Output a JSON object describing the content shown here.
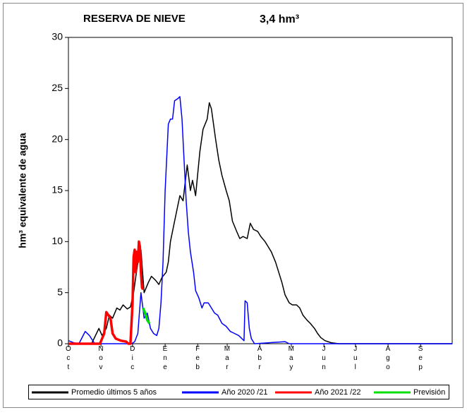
{
  "chart_data": {
    "type": "line",
    "title": "RESERVA DE NIEVE",
    "subtitle": "3,4 hm³",
    "y_label": "hm³ equivalente de agua",
    "xlim": [
      0,
      365
    ],
    "xticks": [
      {
        "value": 0,
        "label": "Oct"
      },
      {
        "value": 31,
        "label": "Nov"
      },
      {
        "value": 61,
        "label": "Dic"
      },
      {
        "value": 92,
        "label": "Ene"
      },
      {
        "value": 123,
        "label": "Feb"
      },
      {
        "value": 151,
        "label": "Mar"
      },
      {
        "value": 182,
        "label": "Abr"
      },
      {
        "value": 212,
        "label": "May"
      },
      {
        "value": 243,
        "label": "Jun"
      },
      {
        "value": 273,
        "label": "Jul"
      },
      {
        "value": 304,
        "label": "Ago"
      },
      {
        "value": 335,
        "label": "Sep"
      }
    ],
    "ylim": [
      0,
      30
    ],
    "yticks": [
      0,
      5,
      10,
      15,
      20,
      25,
      30
    ],
    "legend": "bottom",
    "series": [
      {
        "name": "Promedio últimos 5 años",
        "color": "#000000",
        "x": [
          0,
          22,
          29,
          32,
          36,
          39,
          42,
          46,
          49,
          52,
          56,
          59,
          62,
          66,
          69,
          72,
          76,
          79,
          83,
          86,
          89,
          93,
          95,
          97,
          101,
          106,
          109,
          113,
          116,
          118,
          121,
          125,
          128,
          132,
          134,
          136,
          140,
          143,
          146,
          150,
          153,
          156,
          160,
          163,
          166,
          170,
          173,
          176,
          180,
          183,
          187,
          190,
          193,
          197,
          200,
          203,
          206,
          210,
          213,
          217,
          220,
          223,
          227,
          230,
          234,
          237,
          240,
          244,
          250,
          257,
          365
        ],
        "values": [
          0,
          0,
          1.5,
          0.8,
          1.5,
          2.8,
          2.5,
          3.5,
          3.3,
          3.8,
          3.4,
          3.6,
          5,
          8,
          9.2,
          5,
          6,
          6.6,
          6.2,
          5.8,
          6.5,
          7,
          8,
          10,
          12,
          14.5,
          14,
          17.5,
          15,
          16,
          14.5,
          18.8,
          21,
          22,
          23.6,
          23,
          20,
          18,
          16.5,
          15,
          14,
          12,
          11,
          10.3,
          10.5,
          10.3,
          11.8,
          11.2,
          11,
          10.5,
          10,
          9.5,
          9,
          8,
          7,
          6,
          4.8,
          4,
          3.8,
          3.8,
          3.5,
          2.8,
          2.3,
          2,
          1.5,
          1,
          0.6,
          0.3,
          0.1,
          0,
          0
        ]
      },
      {
        "name": "Año 2020 /21",
        "color": "#0000ff",
        "x": [
          0,
          5,
          10,
          16,
          20,
          25,
          60,
          63,
          66,
          69,
          72,
          75,
          78,
          81,
          84,
          86,
          88,
          90,
          92,
          95,
          97,
          99,
          101,
          104,
          106,
          108,
          110,
          112,
          114,
          116,
          119,
          121,
          124,
          127,
          129,
          133,
          136,
          139,
          142,
          146,
          150,
          154,
          158,
          162,
          164,
          167,
          168,
          170,
          172,
          174,
          177,
          206,
          210,
          365
        ],
        "values": [
          0.3,
          0.1,
          0,
          1.2,
          0.8,
          0,
          0,
          0.2,
          1,
          5,
          2.5,
          3,
          1.5,
          1,
          0.8,
          1.5,
          4,
          8,
          15,
          21.5,
          22,
          22,
          23.8,
          24,
          24.2,
          22,
          18,
          14,
          11,
          9,
          7,
          5.2,
          4.5,
          3.5,
          4,
          4,
          3.5,
          3,
          2.8,
          2,
          1.7,
          1.2,
          1,
          0.8,
          0.6,
          0.3,
          4.2,
          4,
          1.5,
          0.5,
          0,
          0.2,
          0,
          0
        ]
      },
      {
        "name": "Año 2021 /22",
        "color": "#ff0000",
        "x": [
          0,
          30,
          34,
          36,
          38,
          40,
          42,
          45,
          50,
          55,
          57,
          59,
          61,
          62,
          63,
          64,
          65,
          66,
          67,
          68,
          69,
          70,
          71
        ],
        "values": [
          0,
          0,
          1,
          3.1,
          2.8,
          2.5,
          1,
          0.5,
          0.3,
          0.2,
          0,
          0,
          4,
          8.5,
          9.2,
          7,
          9,
          8,
          10,
          9.5,
          7,
          5.5,
          5.3
        ]
      },
      {
        "name": "Previsión",
        "color": "#00e000",
        "x": [
          71,
          73,
          75,
          77
        ],
        "values": [
          3.5,
          3,
          2.3,
          2.0
        ]
      }
    ]
  }
}
